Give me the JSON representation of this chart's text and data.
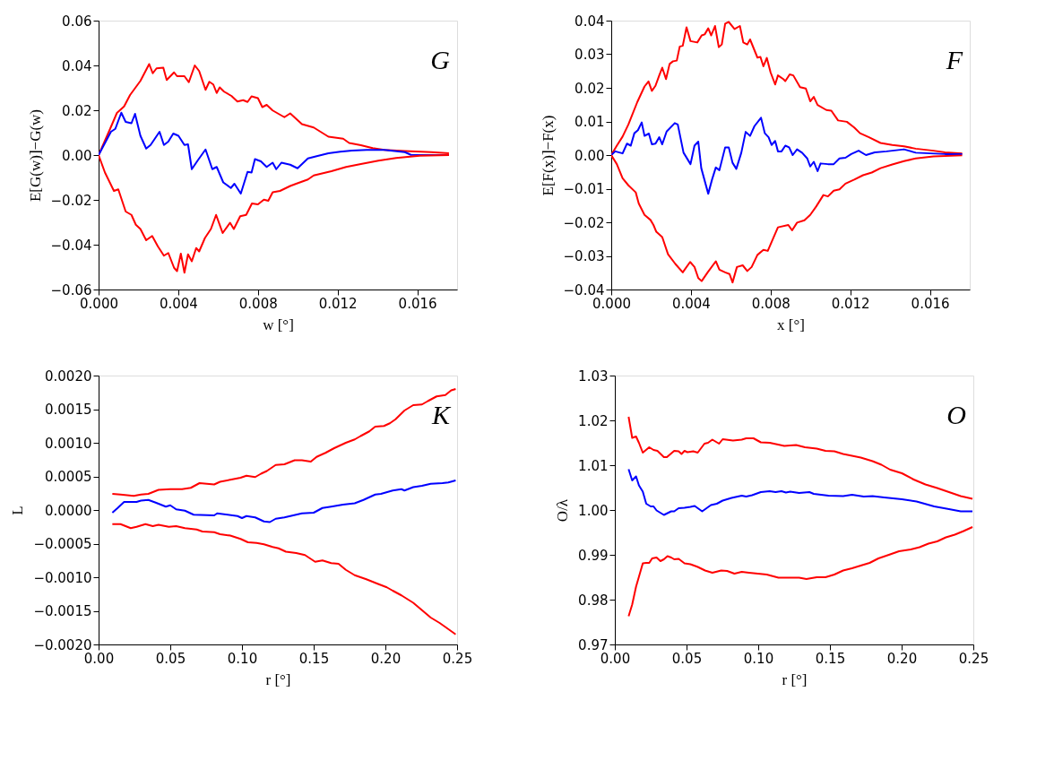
{
  "chart_data": [
    {
      "type": "line",
      "xlabel": "w [°]",
      "ylabel": "E[G(w)]−G(w)",
      "annotations": [
        "G"
      ],
      "xlim": [
        0,
        0.018
      ],
      "xticks": [
        {
          "value": 0,
          "label": "0.000"
        },
        {
          "value": 0.004,
          "label": "0.004"
        },
        {
          "value": 0.008,
          "label": "0.008"
        },
        {
          "value": 0.012,
          "label": "0.012"
        },
        {
          "value": 0.016,
          "label": "0.016"
        }
      ],
      "ylim": [
        -0.06,
        0.06
      ],
      "yticks": [
        {
          "value": -0.06,
          "label": "−0.06"
        },
        {
          "value": -0.04,
          "label": "−0.04"
        },
        {
          "value": -0.02,
          "label": "−0.02"
        },
        {
          "value": 0,
          "label": "0.00"
        },
        {
          "value": 0.02,
          "label": "0.02"
        },
        {
          "value": 0.04,
          "label": "0.04"
        },
        {
          "value": 0.06,
          "label": "0.06"
        }
      ],
      "series": [
        {
          "color": "#ff0000",
          "x": [
            0,
            0.00055,
            0.00092,
            0.00128,
            0.00158,
            0.0021,
            0.00254,
            0.00272,
            0.00291,
            0.00325,
            0.00342,
            0.00379,
            0.00394,
            0.00431,
            0.00453,
            0.00483,
            0.00505,
            0.00537,
            0.00556,
            0.00576,
            0.00593,
            0.00608,
            0.0063,
            0.00667,
            0.00697,
            0.00726,
            0.00748,
            0.00768,
            0.008,
            0.00822,
            0.00844,
            0.00874,
            0.00933,
            0.00962,
            0.01021,
            0.0108,
            0.01154,
            0.01228,
            0.01258,
            0.01317,
            0.01376,
            0.01435,
            0.01538,
            0.01671,
            0.01759
          ],
          "values": [
            0,
            0.0111,
            0.0188,
            0.0217,
            0.0268,
            0.0331,
            0.0406,
            0.0365,
            0.0387,
            0.039,
            0.0335,
            0.0369,
            0.0352,
            0.0352,
            0.0325,
            0.04,
            0.0375,
            0.0291,
            0.0327,
            0.0315,
            0.0277,
            0.0302,
            0.0283,
            0.0264,
            0.0239,
            0.0245,
            0.0237,
            0.0262,
            0.0254,
            0.0214,
            0.0224,
            0.0199,
            0.0169,
            0.0186,
            0.0138,
            0.0123,
            0.0082,
            0.0073,
            0.0054,
            0.0044,
            0.0031,
            0.0023,
            0.0018,
            0.0013,
            0.0008
          ]
        },
        {
          "color": "#0000ff",
          "x": [
            0,
            0.00062,
            0.00084,
            0.00114,
            0.00136,
            0.00165,
            0.00183,
            0.0021,
            0.00239,
            0.00261,
            0.00306,
            0.00328,
            0.0035,
            0.00375,
            0.00401,
            0.00431,
            0.00449,
            0.00468,
            0.00497,
            0.00537,
            0.00571,
            0.00593,
            0.00626,
            0.00664,
            0.00682,
            0.00714,
            0.00748,
            0.00768,
            0.00785,
            0.00815,
            0.00844,
            0.00874,
            0.00892,
            0.00918,
            0.00962,
            0.00999,
            0.01051,
            0.01095,
            0.01154,
            0.01213,
            0.01272,
            0.01346,
            0.01435,
            0.01538,
            0.01568,
            0.01759
          ],
          "values": [
            0,
            0.0104,
            0.0117,
            0.0189,
            0.0148,
            0.0142,
            0.0184,
            0.0086,
            0.0029,
            0.0045,
            0.0104,
            0.0045,
            0.006,
            0.0096,
            0.0086,
            0.0045,
            0.0048,
            -0.0063,
            -0.0025,
            0.0025,
            -0.0063,
            -0.0053,
            -0.0122,
            -0.0147,
            -0.0128,
            -0.0172,
            -0.0075,
            -0.0078,
            -0.0018,
            -0.0028,
            -0.0053,
            -0.0034,
            -0.0063,
            -0.0034,
            -0.0043,
            -0.0059,
            -0.0015,
            -0.0005,
            0.0008,
            0.0015,
            0.002,
            0.0023,
            0.0023,
            0.0013,
            0.0001,
            0
          ]
        },
        {
          "color": "#ff0000",
          "x": [
            0,
            0.00032,
            0.00077,
            0.00099,
            0.00136,
            0.00165,
            0.00187,
            0.0021,
            0.00239,
            0.00269,
            0.00298,
            0.00328,
            0.0035,
            0.00379,
            0.00394,
            0.00413,
            0.00431,
            0.00449,
            0.00468,
            0.0049,
            0.00505,
            0.00534,
            0.00564,
            0.0059,
            0.00623,
            0.0066,
            0.00679,
            0.00711,
            0.00741,
            0.0077,
            0.008,
            0.0083,
            0.00852,
            0.00874,
            0.00911,
            0.00962,
            0.00992,
            0.01051,
            0.0108,
            0.01169,
            0.01243,
            0.01317,
            0.01405,
            0.01494,
            0.01612,
            0.01759
          ],
          "values": [
            0,
            -0.0078,
            -0.016,
            -0.0153,
            -0.0252,
            -0.0267,
            -0.0311,
            -0.033,
            -0.038,
            -0.0361,
            -0.0408,
            -0.0449,
            -0.0437,
            -0.0503,
            -0.0518,
            -0.044,
            -0.0525,
            -0.0443,
            -0.0474,
            -0.0415,
            -0.043,
            -0.037,
            -0.033,
            -0.0267,
            -0.0348,
            -0.0302,
            -0.033,
            -0.0273,
            -0.0267,
            -0.0216,
            -0.022,
            -0.0199,
            -0.0204,
            -0.0166,
            -0.016,
            -0.0138,
            -0.0128,
            -0.0109,
            -0.0091,
            -0.0072,
            -0.0053,
            -0.004,
            -0.0025,
            -0.0013,
            -0.0003,
            0
          ]
        }
      ]
    },
    {
      "type": "line",
      "xlabel": "x [°]",
      "ylabel": "E[F(x)]−F(x)",
      "annotations": [
        "F"
      ],
      "xlim": [
        0,
        0.018
      ],
      "xticks": [
        {
          "value": 0,
          "label": "0.000"
        },
        {
          "value": 0.004,
          "label": "0.004"
        },
        {
          "value": 0.008,
          "label": "0.008"
        },
        {
          "value": 0.012,
          "label": "0.012"
        },
        {
          "value": 0.016,
          "label": "0.016"
        }
      ],
      "ylim": [
        -0.04,
        0.04
      ],
      "yticks": [
        {
          "value": -0.04,
          "label": "−0.04"
        },
        {
          "value": -0.03,
          "label": "−0.03"
        },
        {
          "value": -0.02,
          "label": "−0.02"
        },
        {
          "value": -0.01,
          "label": "−0.01"
        },
        {
          "value": 0,
          "label": "0.00"
        },
        {
          "value": 0.01,
          "label": "0.01"
        },
        {
          "value": 0.02,
          "label": "0.02"
        },
        {
          "value": 0.03,
          "label": "0.03"
        },
        {
          "value": 0.04,
          "label": "0.04"
        }
      ],
      "series": [
        {
          "color": "#ff0000",
          "x": [
            0,
            0.00028,
            0.00057,
            0.00086,
            0.00131,
            0.00167,
            0.00187,
            0.00204,
            0.00222,
            0.00241,
            0.00256,
            0.00275,
            0.00293,
            0.0031,
            0.00329,
            0.00344,
            0.00359,
            0.00378,
            0.00398,
            0.00432,
            0.00454,
            0.00469,
            0.00487,
            0.00502,
            0.00521,
            0.0054,
            0.00555,
            0.00572,
            0.0059,
            0.00619,
            0.00646,
            0.00663,
            0.00683,
            0.00697,
            0.00734,
            0.00749,
            0.00764,
            0.00781,
            0.008,
            0.00823,
            0.00837,
            0.00864,
            0.00874,
            0.00896,
            0.00914,
            0.00948,
            0.00977,
            0.00999,
            0.01017,
            0.01036,
            0.0108,
            0.01105,
            0.01139,
            0.01183,
            0.0122,
            0.01249,
            0.01294,
            0.01352,
            0.01411,
            0.0147,
            0.01529,
            0.01618,
            0.01676,
            0.01762
          ],
          "values": [
            0,
            0.0028,
            0.0055,
            0.0091,
            0.0158,
            0.0204,
            0.0219,
            0.0191,
            0.0206,
            0.0237,
            0.026,
            0.0226,
            0.0271,
            0.0279,
            0.0281,
            0.0323,
            0.0325,
            0.038,
            0.0339,
            0.0335,
            0.0356,
            0.0359,
            0.0377,
            0.0356,
            0.0384,
            0.0321,
            0.0329,
            0.0391,
            0.0396,
            0.0375,
            0.0384,
            0.0335,
            0.0329,
            0.0344,
            0.029,
            0.0292,
            0.0264,
            0.0289,
            0.0246,
            0.021,
            0.0237,
            0.0226,
            0.022,
            0.024,
            0.0237,
            0.0202,
            0.0198,
            0.016,
            0.0173,
            0.0149,
            0.0134,
            0.0132,
            0.0103,
            0.0099,
            0.0082,
            0.0065,
            0.0053,
            0.0036,
            0.003,
            0.0026,
            0.0019,
            0.0013,
            0.0008,
            0.0005
          ]
        },
        {
          "color": "#0000ff",
          "x": [
            0,
            0.0002,
            0.00057,
            0.00079,
            0.00098,
            0.00116,
            0.00134,
            0.00153,
            0.00167,
            0.00189,
            0.00204,
            0.00222,
            0.00241,
            0.00256,
            0.00278,
            0.00319,
            0.00334,
            0.00363,
            0.00398,
            0.00418,
            0.00437,
            0.00452,
            0.00487,
            0.00506,
            0.00525,
            0.00543,
            0.00572,
            0.0059,
            0.00609,
            0.00628,
            0.00653,
            0.00675,
            0.00697,
            0.00719,
            0.00752,
            0.00771,
            0.0079,
            0.00805,
            0.00823,
            0.00837,
            0.00855,
            0.00874,
            0.00893,
            0.00911,
            0.00933,
            0.00958,
            0.00984,
            0.00999,
            0.01017,
            0.01036,
            0.01051,
            0.01088,
            0.01117,
            0.01146,
            0.01176,
            0.01205,
            0.01242,
            0.01279,
            0.01323,
            0.01382,
            0.0147,
            0.01529,
            0.01676,
            0.01762
          ],
          "values": [
            0,
            0.0011,
            0.0005,
            0.0034,
            0.0028,
            0.0065,
            0.0074,
            0.0097,
            0.0057,
            0.0064,
            0.0032,
            0.0034,
            0.0053,
            0.0032,
            0.007,
            0.0095,
            0.0091,
            0.0007,
            -0.0027,
            0.0028,
            0.004,
            -0.0039,
            -0.0115,
            -0.0073,
            -0.0037,
            -0.0045,
            0.0023,
            0.0023,
            -0.0023,
            -0.0041,
            0.0007,
            0.0069,
            0.0057,
            0.0086,
            0.0111,
            0.0065,
            0.0053,
            0.003,
            0.0042,
            0.0011,
            0.0011,
            0.0028,
            0.0023,
            0,
            0.0017,
            0.0007,
            -0.001,
            -0.0034,
            -0.002,
            -0.0048,
            -0.0025,
            -0.0027,
            -0.0027,
            -0.001,
            -0.0008,
            0.0003,
            0.0013,
            0,
            0.0008,
            0.0011,
            0.0017,
            0.0007,
            0.0003,
            0.0003
          ]
        },
        {
          "color": "#ff0000",
          "x": [
            0,
            0.00028,
            0.00057,
            0.00086,
            0.00123,
            0.00138,
            0.00167,
            0.00197,
            0.00212,
            0.00226,
            0.00256,
            0.00285,
            0.00322,
            0.00359,
            0.00396,
            0.00418,
            0.00437,
            0.00454,
            0.00484,
            0.00525,
            0.00543,
            0.00572,
            0.00594,
            0.00609,
            0.00631,
            0.0066,
            0.00683,
            0.00705,
            0.00734,
            0.00764,
            0.00786,
            0.00815,
            0.00837,
            0.00889,
            0.00908,
            0.00933,
            0.0097,
            0.00999,
            0.01029,
            0.01065,
            0.01088,
            0.01117,
            0.01146,
            0.01176,
            0.0122,
            0.01264,
            0.01308,
            0.01352,
            0.01411,
            0.0147,
            0.01529,
            0.01618,
            0.01762
          ],
          "values": [
            0,
            -0.0027,
            -0.0069,
            -0.009,
            -0.0111,
            -0.0144,
            -0.0178,
            -0.0193,
            -0.0208,
            -0.0228,
            -0.0244,
            -0.0295,
            -0.0324,
            -0.0349,
            -0.0318,
            -0.0333,
            -0.0366,
            -0.0375,
            -0.0349,
            -0.0316,
            -0.0341,
            -0.0349,
            -0.0354,
            -0.0379,
            -0.0333,
            -0.0328,
            -0.0345,
            -0.0333,
            -0.0297,
            -0.0282,
            -0.0285,
            -0.0245,
            -0.0215,
            -0.0208,
            -0.0224,
            -0.0201,
            -0.0194,
            -0.0178,
            -0.0153,
            -0.0119,
            -0.0123,
            -0.0106,
            -0.0102,
            -0.0085,
            -0.0073,
            -0.006,
            -0.0052,
            -0.0039,
            -0.0028,
            -0.0018,
            -0.001,
            -0.0004,
            -0.0001
          ]
        }
      ]
    },
    {
      "type": "line",
      "xlabel": "r [°]",
      "ylabel": "L",
      "annotations": [
        "K"
      ],
      "xlim": [
        0,
        0.25
      ],
      "xticks": [
        {
          "value": 0,
          "label": "0.00"
        },
        {
          "value": 0.05,
          "label": "0.05"
        },
        {
          "value": 0.1,
          "label": "0.10"
        },
        {
          "value": 0.15,
          "label": "0.15"
        },
        {
          "value": 0.2,
          "label": "0.20"
        },
        {
          "value": 0.25,
          "label": "0.25"
        }
      ],
      "ylim": [
        -0.002,
        0.002
      ],
      "yticks": [
        {
          "value": -0.002,
          "label": "−0.0020"
        },
        {
          "value": -0.0015,
          "label": "−0.0015"
        },
        {
          "value": -0.001,
          "label": "−0.0010"
        },
        {
          "value": -0.0005,
          "label": "−0.0005"
        },
        {
          "value": 0,
          "label": "0.0000"
        },
        {
          "value": 0.0005,
          "label": "0.0005"
        },
        {
          "value": 0.001,
          "label": "0.0010"
        },
        {
          "value": 0.0015,
          "label": "0.0015"
        },
        {
          "value": 0.002,
          "label": "0.0020"
        }
      ],
      "series": [
        {
          "color": "#ff0000",
          "x": [
            0.0096,
            0.0153,
            0.0245,
            0.0296,
            0.0347,
            0.0418,
            0.05,
            0.0582,
            0.0643,
            0.0704,
            0.0755,
            0.0806,
            0.0847,
            0.0918,
            0.099,
            0.1031,
            0.1092,
            0.1133,
            0.1173,
            0.1235,
            0.1296,
            0.1367,
            0.1418,
            0.148,
            0.152,
            0.1582,
            0.1643,
            0.1724,
            0.1786,
            0.1827,
            0.1888,
            0.1929,
            0.199,
            0.2031,
            0.2071,
            0.2133,
            0.2194,
            0.2255,
            0.2296,
            0.2357,
            0.2418,
            0.2459,
            0.249
          ],
          "values": [
            0.00024,
            0.00023,
            0.00021,
            0.00023,
            0.00024,
            0.0003,
            0.00031,
            0.00031,
            0.00033,
            0.0004,
            0.00039,
            0.00038,
            0.00042,
            0.00045,
            0.00048,
            0.00051,
            0.00049,
            0.00054,
            0.00058,
            0.00067,
            0.00068,
            0.00074,
            0.00074,
            0.00072,
            0.00079,
            0.00085,
            0.00092,
            0.001,
            0.00105,
            0.0011,
            0.00117,
            0.00124,
            0.00125,
            0.00129,
            0.00135,
            0.00148,
            0.00156,
            0.00157,
            0.00162,
            0.00169,
            0.00171,
            0.00178,
            0.0018
          ]
        },
        {
          "color": "#0000ff",
          "x": [
            0.0096,
            0.0133,
            0.0178,
            0.0265,
            0.0296,
            0.0347,
            0.0398,
            0.0469,
            0.05,
            0.0541,
            0.0602,
            0.0663,
            0.0806,
            0.0827,
            0.0969,
            0.1,
            0.1031,
            0.1092,
            0.1153,
            0.1194,
            0.1235,
            0.1296,
            0.1418,
            0.15,
            0.1561,
            0.1622,
            0.1704,
            0.1786,
            0.1847,
            0.1929,
            0.1969,
            0.2051,
            0.2112,
            0.2133,
            0.2194,
            0.2255,
            0.2316,
            0.2398,
            0.2439,
            0.249
          ],
          "values": [
            -4e-05,
            3e-05,
            0.00012,
            0.00012,
            0.00014,
            0.00015,
            0.00011,
            5e-05,
            7e-05,
            1e-05,
            -1e-05,
            -7e-05,
            -8e-05,
            -5e-05,
            -9e-05,
            -0.00012,
            -9e-05,
            -0.00011,
            -0.00017,
            -0.00018,
            -0.00013,
            -0.00011,
            -5e-05,
            -4e-05,
            3e-05,
            5e-05,
            8e-05,
            0.0001,
            0.00015,
            0.00023,
            0.00024,
            0.00029,
            0.00031,
            0.00029,
            0.00034,
            0.00036,
            0.00039,
            0.0004,
            0.00041,
            0.00044
          ]
        },
        {
          "color": "#ff0000",
          "x": [
            0.0096,
            0.0153,
            0.0224,
            0.0265,
            0.0327,
            0.0378,
            0.0418,
            0.049,
            0.0541,
            0.0602,
            0.0684,
            0.0724,
            0.0806,
            0.0847,
            0.0918,
            0.099,
            0.1041,
            0.1102,
            0.1153,
            0.1214,
            0.1255,
            0.1306,
            0.1378,
            0.1439,
            0.151,
            0.1561,
            0.1622,
            0.1673,
            0.1724,
            0.1786,
            0.1867,
            0.1949,
            0.201,
            0.2051,
            0.2112,
            0.2194,
            0.2255,
            0.2316,
            0.2378,
            0.2418,
            0.249
          ],
          "values": [
            -0.00021,
            -0.00021,
            -0.00027,
            -0.00025,
            -0.00021,
            -0.00024,
            -0.00022,
            -0.00025,
            -0.00024,
            -0.00027,
            -0.00029,
            -0.00032,
            -0.00033,
            -0.00036,
            -0.00038,
            -0.00043,
            -0.00048,
            -0.00049,
            -0.00051,
            -0.00055,
            -0.00057,
            -0.00062,
            -0.00064,
            -0.00067,
            -0.00077,
            -0.00075,
            -0.00079,
            -0.0008,
            -0.00089,
            -0.00097,
            -0.00103,
            -0.0011,
            -0.00115,
            -0.0012,
            -0.00127,
            -0.00138,
            -0.00149,
            -0.0016,
            -0.00168,
            -0.00174,
            -0.00185
          ]
        }
      ]
    },
    {
      "type": "line",
      "xlabel": "r [°]",
      "ylabel": "O/λ",
      "annotations": [
        "O"
      ],
      "xlim": [
        0,
        0.25
      ],
      "xticks": [
        {
          "value": 0,
          "label": "0.00"
        },
        {
          "value": 0.05,
          "label": "0.05"
        },
        {
          "value": 0.1,
          "label": "0.10"
        },
        {
          "value": 0.15,
          "label": "0.15"
        },
        {
          "value": 0.2,
          "label": "0.20"
        },
        {
          "value": 0.25,
          "label": "0.25"
        }
      ],
      "ylim": [
        0.97,
        1.03
      ],
      "yticks": [
        0.97,
        0.98,
        0.99,
        {
          "value": 1,
          "label": "1.00"
        },
        1.01,
        1.02,
        1.03
      ],
      "series": [
        {
          "color": "#ff0000",
          "x": [
            0.0096,
            0.0121,
            0.0148,
            0.0168,
            0.0195,
            0.024,
            0.027,
            0.0297,
            0.0342,
            0.0363,
            0.0414,
            0.0445,
            0.0465,
            0.0486,
            0.0506,
            0.0547,
            0.0578,
            0.0625,
            0.065,
            0.068,
            0.0727,
            0.0752,
            0.0824,
            0.0885,
            0.0916,
            0.0967,
            0.1018,
            0.108,
            0.1182,
            0.1264,
            0.1326,
            0.1408,
            0.1469,
            0.1531,
            0.1592,
            0.1715,
            0.1797,
            0.1859,
            0.192,
            0.2002,
            0.2084,
            0.2166,
            0.2248,
            0.233,
            0.2412,
            0.2494
          ],
          "values": [
            1.0208,
            1.0161,
            1.0164,
            1.015,
            1.0128,
            1.014,
            1.0134,
            1.0132,
            1.0118,
            1.0118,
            1.0132,
            1.0131,
            1.0125,
            1.0132,
            1.0129,
            1.0131,
            1.0128,
            1.0148,
            1.015,
            1.0157,
            1.0148,
            1.0158,
            1.0155,
            1.0157,
            1.016,
            1.016,
            1.0151,
            1.015,
            1.0143,
            1.0145,
            1.014,
            1.0137,
            1.0132,
            1.0131,
            1.0125,
            1.0117,
            1.0109,
            1.0101,
            1.009,
            1.0082,
            1.0068,
            1.0057,
            1.0049,
            1.004,
            1.0031,
            1.0025
          ]
        },
        {
          "color": "#0000ff",
          "x": [
            0.0096,
            0.0121,
            0.0148,
            0.0168,
            0.0195,
            0.0219,
            0.025,
            0.027,
            0.0291,
            0.0342,
            0.0393,
            0.0414,
            0.0445,
            0.0486,
            0.0527,
            0.0557,
            0.0609,
            0.067,
            0.0711,
            0.0752,
            0.0814,
            0.0885,
            0.0916,
            0.0957,
            0.1018,
            0.108,
            0.1121,
            0.1162,
            0.1193,
            0.1223,
            0.1285,
            0.1357,
            0.1387,
            0.149,
            0.1592,
            0.1654,
            0.1736,
            0.1797,
            0.1879,
            0.2002,
            0.2104,
            0.2227,
            0.233,
            0.2412,
            0.2494
          ],
          "values": [
            1.0091,
            1.0066,
            1.0075,
            1.0055,
            1.0041,
            1.0014,
            1.0008,
            1.0008,
            0.9999,
            0.9989,
            0.9997,
            0.9997,
            1.0004,
            1.0005,
            1.0007,
            1.0009,
            0.9997,
            1.0011,
            1.0014,
            1.0021,
            1.0027,
            1.0032,
            1.003,
            1.0033,
            1.004,
            1.0042,
            1.004,
            1.0042,
            1.0039,
            1.0041,
            1.0038,
            1.004,
            1.0036,
            1.0032,
            1.0031,
            1.0034,
            1.003,
            1.0031,
            1.0028,
            1.0024,
            1.0019,
            1.0008,
            1.0002,
            0.9997,
            0.9997
          ]
        },
        {
          "color": "#ff0000",
          "x": [
            0.0096,
            0.0121,
            0.0148,
            0.0168,
            0.0195,
            0.0219,
            0.024,
            0.026,
            0.0291,
            0.0318,
            0.0342,
            0.0367,
            0.0393,
            0.0414,
            0.0445,
            0.0486,
            0.0527,
            0.0578,
            0.0629,
            0.068,
            0.0742,
            0.0783,
            0.0834,
            0.0885,
            0.0936,
            0.0998,
            0.1059,
            0.1141,
            0.1223,
            0.1285,
            0.1336,
            0.1408,
            0.1469,
            0.1531,
            0.1592,
            0.1654,
            0.1715,
            0.1777,
            0.1838,
            0.192,
            0.1982,
            0.2064,
            0.2125,
            0.2187,
            0.2248,
            0.2309,
            0.2371,
            0.2432,
            0.2494
          ],
          "values": [
            0.9763,
            0.9789,
            0.9829,
            0.9851,
            0.9881,
            0.9882,
            0.9882,
            0.9892,
            0.9894,
            0.9886,
            0.989,
            0.9897,
            0.9894,
            0.989,
            0.9891,
            0.9881,
            0.9879,
            0.9873,
            0.9865,
            0.986,
            0.9865,
            0.9864,
            0.9858,
            0.9862,
            0.986,
            0.9858,
            0.9856,
            0.9849,
            0.9849,
            0.9849,
            0.9846,
            0.985,
            0.985,
            0.9856,
            0.9865,
            0.987,
            0.9876,
            0.9882,
            0.9892,
            0.9901,
            0.9908,
            0.9912,
            0.9917,
            0.9925,
            0.993,
            0.9939,
            0.9945,
            0.9953,
            0.9962
          ]
        }
      ]
    }
  ]
}
